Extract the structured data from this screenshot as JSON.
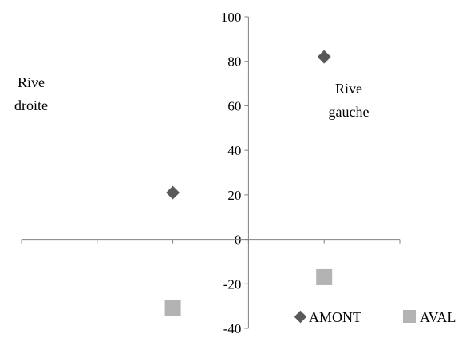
{
  "chart_data": {
    "type": "scatter",
    "title": "",
    "xlabel": "",
    "ylabel": "",
    "ylim": [
      -40,
      100
    ],
    "yticks": [
      -40,
      -20,
      0,
      20,
      40,
      60,
      80,
      100
    ],
    "y_tick_labels": [
      "-40",
      "-20",
      "0",
      "20",
      "40",
      "60",
      "80",
      "100"
    ],
    "xlim": [
      -3,
      2
    ],
    "x_tick_values": [
      -3,
      -2,
      -1,
      0,
      1,
      2
    ],
    "x_tick_labels_visible": false,
    "grid": false,
    "legend_position": "bottom-right",
    "series": [
      {
        "name": "AMONT",
        "marker": "diamond",
        "color": "#595959",
        "points": [
          {
            "x": -1,
            "y": 21
          },
          {
            "x": 1,
            "y": 82
          }
        ]
      },
      {
        "name": "AVAL",
        "marker": "square",
        "color": "#b3b3b3",
        "points": [
          {
            "x": -1,
            "y": -31
          },
          {
            "x": 1,
            "y": -17
          }
        ]
      }
    ],
    "annotations": [
      {
        "key": "rive_droite",
        "lines": [
          "Rive",
          "droite"
        ]
      },
      {
        "key": "rive_gauche",
        "lines": [
          "Rive",
          "gauche"
        ]
      }
    ]
  }
}
